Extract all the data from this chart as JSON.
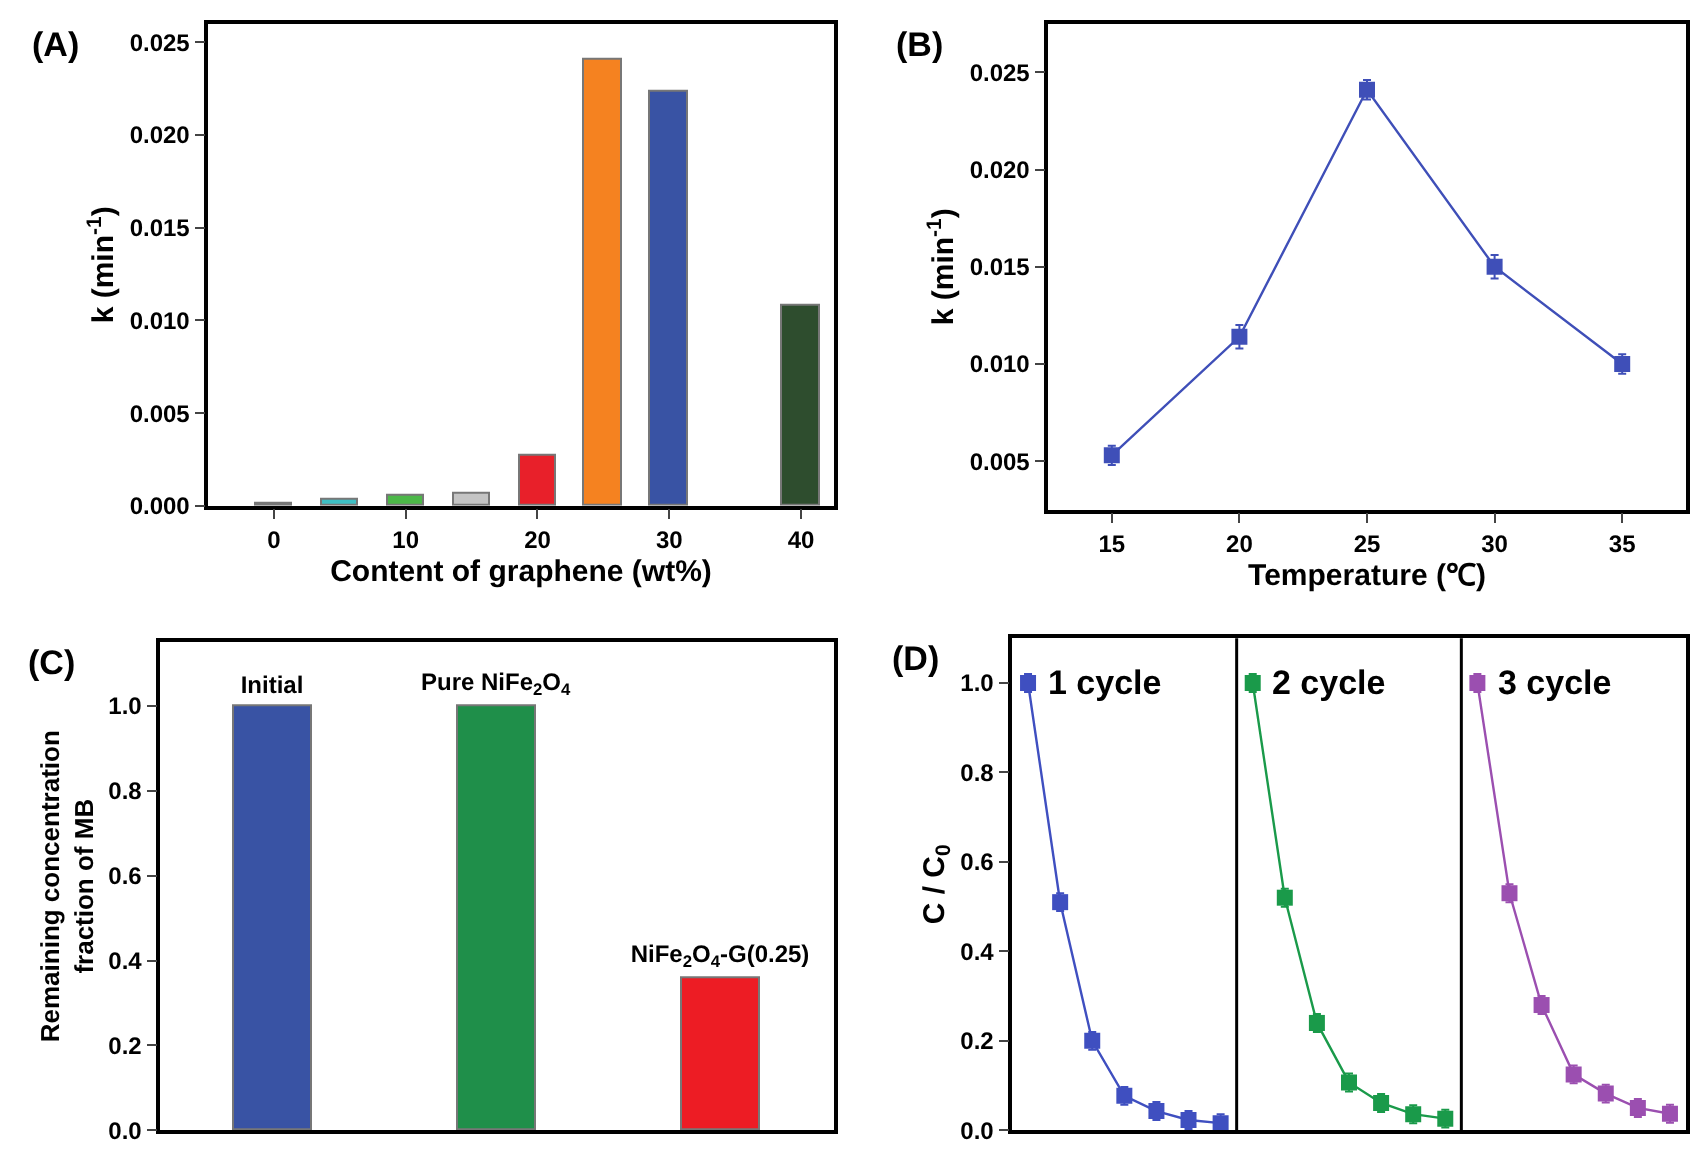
{
  "chart_data": [
    {
      "type": "bar",
      "title": "(A)",
      "xlabel": "Content of graphene (wt%)",
      "ylabel": "k (min$^{-1}$)",
      "x": [
        0,
        5,
        10,
        15,
        20,
        25,
        30,
        40
      ],
      "values": [
        0.0001,
        0.0003,
        0.0005,
        0.0007,
        0.0027,
        0.0241,
        0.0223,
        0.0108
      ],
      "colors": [
        "#1a1a1a",
        "#3fbfc4",
        "#4cb848",
        "#c4c4c4",
        "#e8202a",
        "#f58220",
        "#3953a4",
        "#2e4d2e"
      ],
      "xlim": [
        -5,
        42.5
      ],
      "xticks": [
        0,
        10,
        20,
        30,
        40
      ],
      "ylim": [
        0,
        0.026
      ],
      "yticks": [
        {
          "value": 0,
          "label": "0.000"
        },
        0.005,
        {
          "value": 0.01,
          "label": "0.010"
        },
        0.015,
        {
          "value": 0.02,
          "label": "0.020"
        },
        0.025
      ],
      "grid": false
    },
    {
      "type": "line",
      "title": "(B)",
      "xlabel": "Temperature (℃)",
      "ylabel": "k (min$^{-1}$)",
      "x": [
        15,
        20,
        25,
        30,
        35
      ],
      "series": [
        {
          "color": "#3f4fb8",
          "values": [
            0.0053,
            0.0114,
            0.0241,
            0.015,
            0.01
          ],
          "errors": [
            0.0005,
            0.0006,
            0.0005,
            0.0006,
            0.0005
          ]
        }
      ],
      "xlim": [
        12.5,
        37.5
      ],
      "xticks": [
        15,
        20,
        25,
        30,
        35
      ],
      "ylim": [
        0.0025,
        0.0275
      ],
      "yticks": [
        0.005,
        {
          "value": 0.01,
          "label": "0.010"
        },
        0.015,
        {
          "value": 0.02,
          "label": "0.020"
        },
        0.025
      ],
      "marker": "square",
      "line_style": "solid",
      "grid": false
    },
    {
      "type": "bar",
      "title": "(C)",
      "ylabel": "Remaining concentration\nfraction of MB",
      "categories": [
        "Initial",
        "Pure NiFe$_{2}$O$_{4}$",
        "NiFe$_{2}$O$_{4}$-G(0.25)"
      ],
      "values": [
        1.0,
        1.0,
        0.36
      ],
      "colors": [
        "#3953a4",
        "#1f8f4a",
        "#ed1c24"
      ],
      "ylim": [
        0,
        1.15
      ],
      "yticks": [
        {
          "value": 0,
          "label": "0.0"
        },
        0.2,
        0.4,
        0.6,
        0.8,
        {
          "value": 1,
          "label": "1.0"
        }
      ],
      "tick_labels": "y",
      "grid": false
    },
    {
      "type": "line",
      "title": "(D)",
      "ylabel": "C / C$_{0}$",
      "categories": [
        null,
        null,
        null,
        null,
        null,
        null,
        null,
        null,
        null,
        null,
        null,
        null,
        null,
        null,
        null,
        null,
        null,
        null,
        null,
        null,
        null
      ],
      "series": [
        {
          "name": "1 cycle",
          "color": "#3f4fc0",
          "values": [
            1.0,
            0.51,
            0.2,
            0.077,
            0.043,
            0.023,
            0.016,
            null,
            null,
            null,
            null,
            null,
            null,
            null,
            null,
            null,
            null,
            null,
            null,
            null,
            null
          ],
          "errors": [
            0.02,
            0.02,
            0.02,
            0.02,
            0.02,
            0.02,
            0.02,
            null,
            null,
            null,
            null,
            null,
            null,
            null,
            null,
            null,
            null,
            null,
            null,
            null,
            null
          ]
        },
        {
          "name": "2 cycle",
          "color": "#1a9a4a",
          "values": [
            null,
            null,
            null,
            null,
            null,
            null,
            null,
            1.0,
            0.52,
            0.24,
            0.107,
            0.061,
            0.036,
            0.026,
            null,
            null,
            null,
            null,
            null,
            null,
            null
          ],
          "errors": [
            null,
            null,
            null,
            null,
            null,
            null,
            null,
            0.02,
            0.02,
            0.02,
            0.02,
            0.02,
            0.02,
            0.02,
            null,
            null,
            null,
            null,
            null,
            null,
            null
          ]
        },
        {
          "name": "3 cycle",
          "color": "#9b4fb0",
          "values": [
            null,
            null,
            null,
            null,
            null,
            null,
            null,
            null,
            null,
            null,
            null,
            null,
            null,
            null,
            1.0,
            0.53,
            0.28,
            0.125,
            0.082,
            0.05,
            0.037
          ],
          "errors": [
            null,
            null,
            null,
            null,
            null,
            null,
            null,
            null,
            null,
            null,
            null,
            null,
            null,
            null,
            0.02,
            0.02,
            0.02,
            0.02,
            0.02,
            0.02,
            0.02
          ]
        }
      ],
      "ylim": [
        0,
        1.1
      ],
      "yticks": [
        {
          "value": 0,
          "label": "0.0"
        },
        0.2,
        0.4,
        0.6,
        0.8,
        {
          "value": 1,
          "label": "1.0"
        }
      ],
      "tick_labels": "y",
      "marker": "square",
      "line_style": "solid",
      "grid": false
    }
  ]
}
